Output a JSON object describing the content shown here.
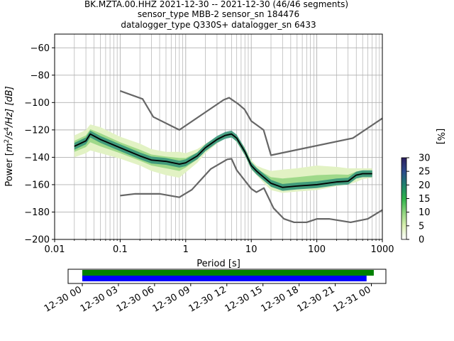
{
  "chart_data": [
    {
      "type": "heatmap",
      "title": {
        "line1": "BK.MZTA.00.HHZ   2021-12-30 -- 2021-12-30  (46/46 segments)",
        "line2": "sensor_type MBB-2 sensor_sn 184476",
        "line3": "datalogger_type Q330S+ datalogger_sn 6433"
      },
      "xlabel": "Period [s]",
      "ylabel": "Power [m²/s⁴/Hz] [dB]",
      "ylabel_parts": {
        "a": "Power [",
        "b": "m",
        "b_sup": "2",
        "c": "/s",
        "c_sup": "4",
        "d": "/Hz] [dB]"
      },
      "x_scale": "log",
      "xlim": [
        0.01,
        1000
      ],
      "ylim": [
        -200,
        -50
      ],
      "x_ticks": [
        {
          "value": 0.01,
          "label": "0.01"
        },
        {
          "value": 0.1,
          "label": "0.1"
        },
        {
          "value": 1,
          "label": "1"
        },
        {
          "value": 10,
          "label": "10"
        },
        {
          "value": 100,
          "label": "100"
        },
        {
          "value": 1000,
          "label": "1000"
        }
      ],
      "y_ticks": [
        {
          "value": -60,
          "label": "−60"
        },
        {
          "value": -80,
          "label": "−80"
        },
        {
          "value": -100,
          "label": "−100"
        },
        {
          "value": -120,
          "label": "−120"
        },
        {
          "value": -140,
          "label": "−140"
        },
        {
          "value": -160,
          "label": "−160"
        },
        {
          "value": -180,
          "label": "−180"
        },
        {
          "value": -200,
          "label": "−200"
        }
      ],
      "grid": true,
      "colorbar": {
        "label": "[%]",
        "range": [
          0,
          30
        ],
        "ticks": [
          {
            "value": 0,
            "label": "0"
          },
          {
            "value": 5,
            "label": "5"
          },
          {
            "value": 10,
            "label": "10"
          },
          {
            "value": 15,
            "label": "15"
          },
          {
            "value": 20,
            "label": "20"
          },
          {
            "value": 25,
            "label": "25"
          },
          {
            "value": 30,
            "label": "30"
          }
        ],
        "colors": [
          "#ffffff",
          "#d9efb0",
          "#8fd47f",
          "#2db34a",
          "#1f7f6e",
          "#2b4b8c",
          "#2d1e5e"
        ]
      },
      "series": [
        {
          "role": "noise-model-high",
          "color": "#666666",
          "x": [
            0.1,
            0.22,
            0.32,
            0.8,
            3.8,
            4.6,
            6.3,
            7.9,
            10,
            15.4,
            20,
            354.8,
            1000
          ],
          "y": [
            -91.5,
            -97.4,
            -110.5,
            -120,
            -98,
            -96.5,
            -101,
            -105,
            -113.5,
            -120,
            -138.5,
            -126,
            -111.5
          ]
        },
        {
          "role": "noise-model-low",
          "color": "#666666",
          "x": [
            0.1,
            0.17,
            0.4,
            0.8,
            1.24,
            2.4,
            4.3,
            5.0,
            6.0,
            10,
            12,
            15.6,
            21.9,
            31.6,
            45,
            70,
            101,
            154,
            328,
            600,
            1000
          ],
          "y": [
            -168,
            -166.7,
            -166.7,
            -169.2,
            -163.7,
            -148.6,
            -141.5,
            -141.1,
            -149.4,
            -163,
            -165.5,
            -162.5,
            -177.2,
            -185,
            -187.5,
            -187.5,
            -185,
            -185,
            -187.5,
            -185,
            -178.5
          ]
        },
        {
          "role": "mean",
          "color": "#000000",
          "x": [
            0.02,
            0.03,
            0.035,
            0.05,
            0.1,
            0.2,
            0.3,
            0.5,
            0.8,
            1.0,
            1.5,
            2.0,
            3.0,
            4.0,
            5.0,
            6.0,
            8.0,
            10,
            12,
            15,
            20,
            30,
            50,
            100,
            200,
            300,
            400,
            500,
            700
          ],
          "y": [
            -132,
            -128,
            -123,
            -127,
            -133,
            -139,
            -142,
            -143,
            -145,
            -144,
            -139,
            -133,
            -127,
            -124,
            -123,
            -126,
            -136,
            -146,
            -150,
            -154,
            -159,
            -162,
            -161,
            -160,
            -158,
            -157.5,
            -153,
            -152,
            -152
          ]
        }
      ],
      "spread": {
        "x": [
          0.02,
          0.03,
          0.035,
          0.05,
          0.1,
          0.2,
          0.3,
          0.5,
          0.8,
          1.0,
          1.5,
          2.0,
          3.0,
          4.0,
          5.0,
          6.0,
          8.0,
          10,
          12,
          15,
          20,
          30,
          50,
          100,
          200,
          300,
          400,
          500,
          700
        ],
        "upper": [
          -124,
          -120,
          -116,
          -118,
          -125,
          -130,
          -134,
          -136,
          -136,
          -137,
          -134,
          -130,
          -125,
          -122,
          -121,
          -124,
          -133,
          -142,
          -146,
          -148,
          -150,
          -149,
          -148,
          -146,
          -147,
          -148,
          -148,
          -148,
          -148
        ],
        "lower": [
          -140,
          -137,
          -135,
          -137,
          -141,
          -146,
          -150,
          -153,
          -155,
          -151,
          -144,
          -137,
          -130,
          -126,
          -125,
          -129,
          -139,
          -149,
          -153,
          -158,
          -164,
          -166,
          -165,
          -164,
          -161,
          -160,
          -158,
          -156,
          -155
        ]
      }
    },
    {
      "type": "timeline",
      "x_range": [
        "2021-12-30 00:00",
        "2021-12-31 01:30"
      ],
      "tick_labels": [
        "12-30 00",
        "12-30 03",
        "12-30 06",
        "12-30 09",
        "12-30 12",
        "12-30 15",
        "12-30 18",
        "12-30 21",
        "12-31 00"
      ],
      "tick_values_hours": [
        0,
        3,
        6,
        9,
        12,
        15,
        18,
        21,
        24
      ],
      "bars": [
        {
          "role": "data-availability",
          "color": "#008000",
          "start_hour": 0,
          "end_hour": 24.2
        },
        {
          "role": "psd-segments",
          "color": "#0000ff",
          "start_hour": 0,
          "end_hour": 23.6
        }
      ]
    }
  ]
}
